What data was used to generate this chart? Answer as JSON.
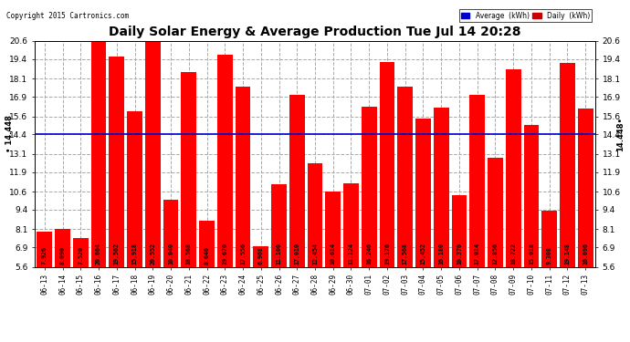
{
  "title": "Daily Solar Energy & Average Production Tue Jul 14 20:28",
  "copyright": "Copyright 2015 Cartronics.com",
  "categories": [
    "06-13",
    "06-14",
    "06-15",
    "06-16",
    "06-17",
    "06-18",
    "06-19",
    "06-20",
    "06-21",
    "06-22",
    "06-23",
    "06-24",
    "06-25",
    "06-26",
    "06-27",
    "06-28",
    "06-29",
    "06-30",
    "07-01",
    "07-02",
    "07-03",
    "07-04",
    "07-05",
    "07-06",
    "07-07",
    "07-08",
    "07-09",
    "07-10",
    "07-11",
    "07-12",
    "07-13"
  ],
  "values": [
    7.926,
    8.09,
    7.52,
    20.604,
    19.562,
    15.918,
    20.552,
    10.04,
    18.568,
    8.646,
    19.67,
    17.556,
    6.968,
    11.1,
    17.01,
    12.454,
    10.614,
    11.124,
    16.246,
    19.176,
    17.568,
    15.452,
    16.18,
    10.37,
    17.014,
    12.856,
    18.722,
    15.018,
    9.308,
    19.148,
    16.096
  ],
  "average": 14.448,
  "bar_color": "#ff0000",
  "average_line_color": "#0000cc",
  "background_color": "#ffffff",
  "plot_bg_color": "#ffffff",
  "grid_color": "#aaaaaa",
  "ylim": [
    5.6,
    20.6
  ],
  "yticks": [
    5.6,
    6.9,
    8.1,
    9.4,
    10.6,
    11.9,
    13.1,
    14.4,
    15.6,
    16.9,
    18.1,
    19.4,
    20.6
  ],
  "legend_avg_color": "#0000cc",
  "legend_daily_color": "#cc0000",
  "value_label_color": "#000000",
  "left_avg_label": "• 14.448",
  "right_avg_label": "14.448•"
}
